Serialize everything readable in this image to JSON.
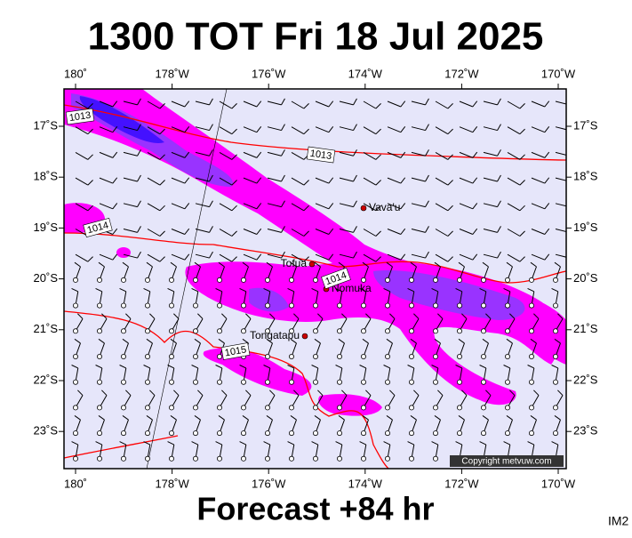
{
  "header": {
    "title": "1300 TOT Fri 18 Jul 2025"
  },
  "footer": {
    "caption": "Forecast +84 hr",
    "code": "IM2"
  },
  "map": {
    "lon_labels": [
      "180˚",
      "178˚W",
      "176˚W",
      "174˚W",
      "172˚W",
      "170˚W"
    ],
    "lat_labels": [
      "17˚S",
      "18˚S",
      "19˚S",
      "20˚S",
      "21˚S",
      "22˚S",
      "23˚S"
    ],
    "places": [
      {
        "label": "Vava'u"
      },
      {
        "label": "Tofua"
      },
      {
        "label": "Nomuka"
      },
      {
        "label": "Tongatapu"
      }
    ],
    "isobar_labels": [
      "1013",
      "1013",
      "1014",
      "1014",
      "1015"
    ],
    "copyright": "Copyright metvuw.com"
  }
}
